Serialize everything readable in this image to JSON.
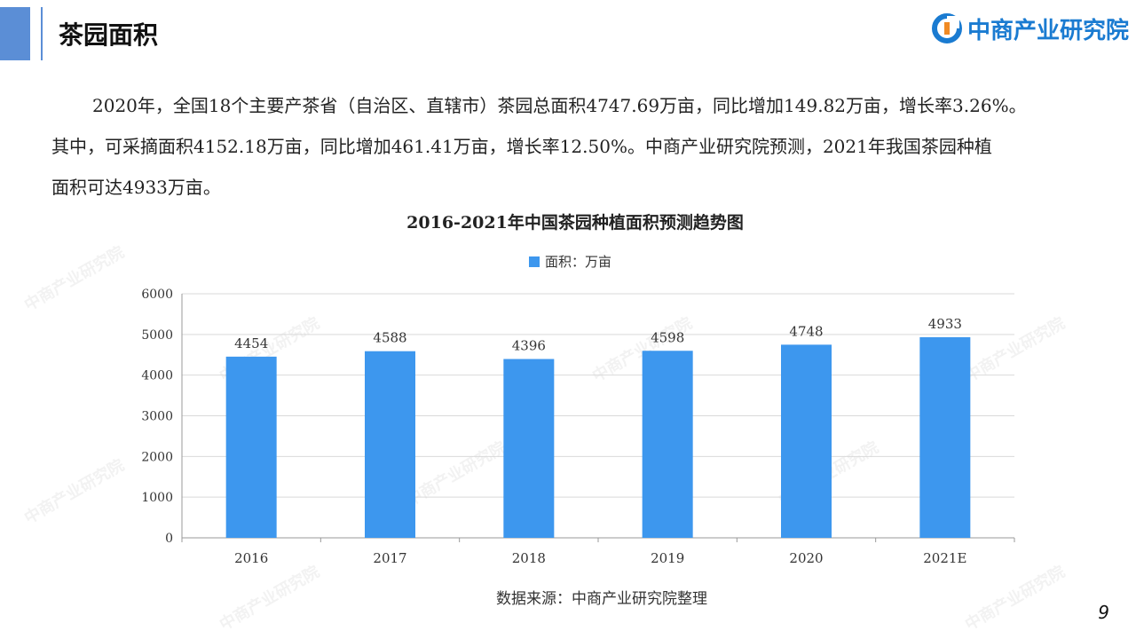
{
  "header": {
    "title": "茶园面积",
    "logo_text": "中商产业研究院"
  },
  "body_text": {
    "line1": "2020年，全国18个主要产茶省（自治区、直辖市）茶园总面积4747.69万亩，同比增加149.82万亩，增长率3.26%。",
    "line2": "其中，可采摘面积4152.18万亩，同比增加461.41万亩，增长率12.50%。中商产业研究院预测，2021年我国茶园种植",
    "line3": "面积可达4933万亩。"
  },
  "watermark_text": "中商产业研究院",
  "chart_data": {
    "type": "bar",
    "title": "2016-2021年中国茶园种植面积预测趋势图",
    "categories": [
      "2016",
      "2017",
      "2018",
      "2019",
      "2020",
      "2021E"
    ],
    "series": [
      {
        "name": "面积：万亩",
        "values": [
          4454,
          4588,
          4396,
          4598,
          4748,
          4933
        ],
        "color": "#3d97ee"
      }
    ],
    "data_labels": [
      "4454",
      "4588",
      "4396",
      "4598",
      "4748",
      "4933"
    ],
    "ylim": [
      0,
      6000
    ],
    "yticks": [
      0,
      1000,
      2000,
      3000,
      4000,
      5000,
      6000
    ],
    "grid": true,
    "legend_position": "top-center"
  },
  "source": "数据来源：中商产业研究院整理",
  "page_number": "9",
  "colors": {
    "accent": "#5b8ed6",
    "brand": "#1a7bd1",
    "bar": "#3d97ee"
  }
}
